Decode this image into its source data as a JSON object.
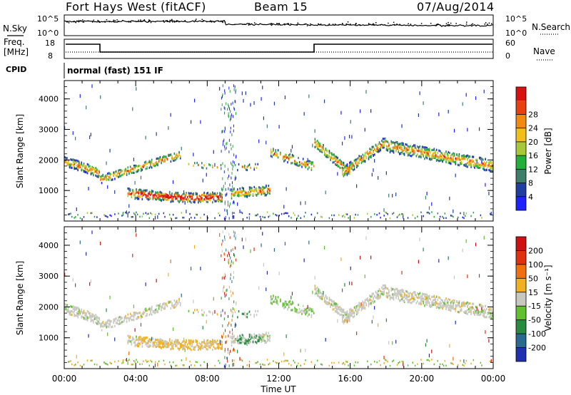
{
  "header": {
    "station": "Fort Hays West (fitACF)",
    "beam": "Beam 15",
    "date": "07/Aug/2014"
  },
  "top_panel": {
    "n_sky_label": "N.Sky",
    "n_search_label": "N.Search",
    "n_ticks": [
      "10^5",
      "10^0"
    ],
    "freq_label_1": "Freq.",
    "freq_label_2": "[MHz]",
    "freq_ticks": [
      "18",
      "8"
    ],
    "nave_label": "Nave",
    "nave_ticks": [
      "60",
      "0"
    ],
    "n_ticks_right": [
      "10^5",
      "10^0"
    ],
    "cpid_label": "CPID",
    "cpid_value": "normal (fast) 151 IF"
  },
  "chart_data": [
    {
      "type": "heatmap",
      "name": "power",
      "xlabel": "",
      "ylabel": "Slant Range [km]",
      "yticks": [
        "1000",
        "2000",
        "3000",
        "4000"
      ],
      "colorbar_label": "Power [dB]",
      "colorbar_ticks": [
        "4",
        "8",
        "12",
        "16",
        "20",
        "24",
        "28"
      ],
      "colorbar_colors": [
        "#1e22ff",
        "#1f3f9e",
        "#3f7d6b",
        "#22b03a",
        "#a8c83a",
        "#f0c018",
        "#f08a10",
        "#e84010",
        "#d81010"
      ]
    },
    {
      "type": "heatmap",
      "name": "velocity",
      "xlabel": "Time UT",
      "ylabel": "Slant Range [km]",
      "yticks": [
        "1000",
        "2000",
        "3000",
        "4000"
      ],
      "xticks": [
        "00:00",
        "04:00",
        "08:00",
        "12:00",
        "16:00",
        "20:00",
        "00:00"
      ],
      "colorbar_label": "Velocity [m s⁻¹]",
      "colorbar_ticks": [
        "200",
        "100",
        "50",
        "15",
        "-15",
        "-50",
        "-100",
        "-200"
      ],
      "colorbar_colors": [
        "#2030b0",
        "#2a6a90",
        "#2a8a40",
        "#60c030",
        "#c8c8c0",
        "#f0b020",
        "#f07010",
        "#e03010",
        "#d01010"
      ]
    }
  ]
}
